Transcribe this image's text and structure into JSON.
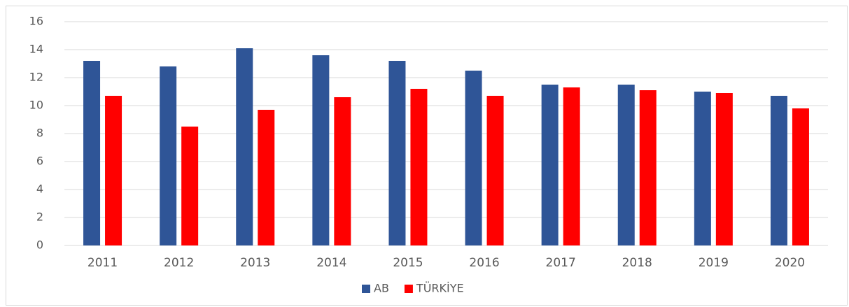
{
  "chart_data": {
    "type": "bar",
    "categories": [
      "2011",
      "2012",
      "2013",
      "2014",
      "2015",
      "2016",
      "2017",
      "2018",
      "2019",
      "2020"
    ],
    "series": [
      {
        "name": "AB",
        "color": "#2f5597",
        "values": [
          13.2,
          12.8,
          14.1,
          13.6,
          13.2,
          12.5,
          11.5,
          11.5,
          11.0,
          10.7
        ]
      },
      {
        "name": "TÜRKİYE",
        "color": "#ff0000",
        "values": [
          10.7,
          8.5,
          9.7,
          10.6,
          11.2,
          10.7,
          11.3,
          11.1,
          10.9,
          9.8
        ]
      }
    ],
    "ylim": [
      0,
      16
    ],
    "yticks": [
      0,
      2,
      4,
      6,
      8,
      10,
      12,
      14,
      16
    ],
    "grid": true,
    "legend": "bottom"
  }
}
